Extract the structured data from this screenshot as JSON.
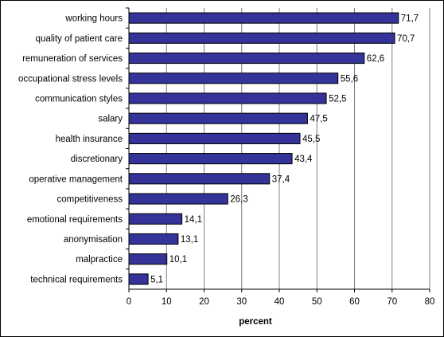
{
  "chart_data": {
    "type": "bar",
    "orientation": "horizontal",
    "title": "",
    "xlabel": "percent",
    "ylabel": "",
    "xlim": [
      0,
      80
    ],
    "x_ticks": [
      "0",
      "10",
      "20",
      "30",
      "40",
      "50",
      "60",
      "70",
      "80"
    ],
    "grid": true,
    "legend": "none",
    "bar_color": "#333399",
    "categories": [
      "working hours",
      "quality of patient care",
      "remuneration of services",
      "occupational stress levels",
      "communication styles",
      "salary",
      "health insurance",
      "discretionary",
      "operative management",
      "competitiveness",
      "emotional requirements",
      "anonymisation",
      "malpractice",
      "technical requirements"
    ],
    "values": [
      71.7,
      70.7,
      62.6,
      55.6,
      52.5,
      47.5,
      45.5,
      43.4,
      37.4,
      26.3,
      14.1,
      13.1,
      10.1,
      5.1
    ],
    "value_labels": [
      "71,7",
      "70,7",
      "62,6",
      "55,6",
      "52,5",
      "47,5",
      "45,5",
      "43,4",
      "37,4",
      "26,3",
      "14,1",
      "13,1",
      "10,1",
      "5,1"
    ]
  }
}
